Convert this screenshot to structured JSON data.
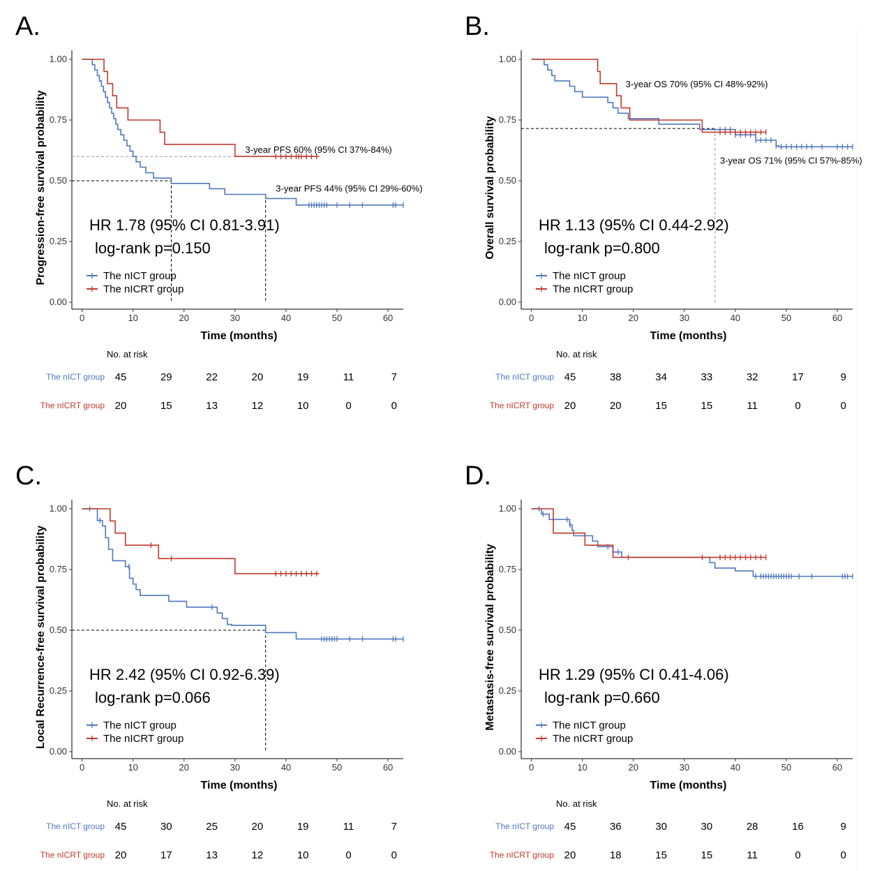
{
  "colors": {
    "nict": "#4F77BE",
    "nicrt": "#C0392B",
    "ref_dark": "#000000",
    "ref_light": "#999999"
  },
  "chart_data": [
    {
      "type": "line",
      "panel_label": "A.",
      "ylabel": "Progression-free survival probability",
      "xlabel": "Time (months)",
      "xlim": [
        -2,
        63
      ],
      "ylim": [
        0,
        1
      ],
      "xticks": [
        0,
        10,
        20,
        30,
        40,
        50,
        60
      ],
      "yticks": [
        0,
        0.25,
        0.5,
        0.75,
        1.0
      ],
      "ytick_labels": [
        "0.00",
        "0.25",
        "0.50",
        "0.75",
        "1.00"
      ],
      "series": [
        {
          "name": "The nICT group",
          "color_key": "nict",
          "steps": [
            [
              0,
              1.0
            ],
            [
              2,
              0.978
            ],
            [
              2.5,
              0.956
            ],
            [
              3,
              0.933
            ],
            [
              3.4,
              0.911
            ],
            [
              3.8,
              0.889
            ],
            [
              4.2,
              0.867
            ],
            [
              4.6,
              0.844
            ],
            [
              5,
              0.822
            ],
            [
              5.4,
              0.8
            ],
            [
              5.8,
              0.778
            ],
            [
              6.2,
              0.756
            ],
            [
              6.6,
              0.733
            ],
            [
              7,
              0.711
            ],
            [
              7.6,
              0.689
            ],
            [
              8.2,
              0.667
            ],
            [
              8.8,
              0.644
            ],
            [
              9.4,
              0.622
            ],
            [
              10,
              0.6
            ],
            [
              10.6,
              0.578
            ],
            [
              11.4,
              0.556
            ],
            [
              12.5,
              0.533
            ],
            [
              14,
              0.511
            ],
            [
              17.5,
              0.489
            ],
            [
              25,
              0.467
            ],
            [
              28,
              0.444
            ],
            [
              36,
              0.427
            ],
            [
              42,
              0.4
            ]
          ],
          "end": 63,
          "censors": [
            44.5,
            45,
            45.5,
            46,
            46.5,
            47,
            47.5,
            48,
            50,
            52.5,
            55,
            61,
            61.5,
            63
          ]
        },
        {
          "name": "The nICRT group",
          "color_key": "nicrt",
          "steps": [
            [
              0,
              1.0
            ],
            [
              4.3,
              0.95
            ],
            [
              5,
              0.9
            ],
            [
              6,
              0.85
            ],
            [
              6.8,
              0.8
            ],
            [
              9,
              0.75
            ],
            [
              15.3,
              0.7
            ],
            [
              16.2,
              0.65
            ],
            [
              30,
              0.6
            ]
          ],
          "end": 46.5,
          "censors": [
            38,
            39,
            40,
            41,
            42,
            42.5,
            43,
            44,
            45,
            46
          ]
        }
      ],
      "reference_lines": [
        {
          "y": 0.6,
          "x": 36,
          "style": "light",
          "vline": false
        },
        {
          "y": 0.5,
          "x": 17.5,
          "style": "dark",
          "vline": true
        },
        {
          "y": 0.44,
          "x": 36,
          "style": "dark",
          "vline": true,
          "hline": false
        }
      ],
      "annotations": [
        {
          "text": "3-year PFS 60% (95% CI 37%-84%)",
          "x": 32,
          "y": 0.615
        },
        {
          "text": "3-year PFS 44% (95% CI 29%-60%)",
          "x": 38,
          "y": 0.455
        }
      ],
      "hr_text": "HR 1.78 (95% CI 0.81-3.91)",
      "pval_text": "log-rank p=0.150",
      "legend": [
        "The nICT group",
        "The nICRT group"
      ],
      "risk_table": {
        "title": "No. at risk",
        "rows": [
          {
            "label": "The nICT group",
            "color_key": "nict",
            "values": [
              45,
              29,
              22,
              20,
              19,
              11,
              7
            ]
          },
          {
            "label": "The nICRT group",
            "color_key": "nicrt",
            "values": [
              20,
              15,
              13,
              12,
              10,
              0,
              0
            ]
          }
        ]
      }
    },
    {
      "type": "line",
      "panel_label": "B.",
      "ylabel": "Overall survival probability",
      "xlabel": "Time (months)",
      "xlim": [
        -2,
        63
      ],
      "ylim": [
        0,
        1
      ],
      "xticks": [
        0,
        10,
        20,
        30,
        40,
        50,
        60
      ],
      "yticks": [
        0,
        0.25,
        0.5,
        0.75,
        1.0
      ],
      "ytick_labels": [
        "0.00",
        "0.25",
        "0.50",
        "0.75",
        "1.00"
      ],
      "series": [
        {
          "name": "The nICT group",
          "color_key": "nict",
          "steps": [
            [
              0,
              1.0
            ],
            [
              2.5,
              0.978
            ],
            [
              3.2,
              0.956
            ],
            [
              4,
              0.933
            ],
            [
              4.6,
              0.911
            ],
            [
              7.5,
              0.889
            ],
            [
              8.5,
              0.867
            ],
            [
              10,
              0.844
            ],
            [
              15,
              0.822
            ],
            [
              16,
              0.8
            ],
            [
              17,
              0.778
            ],
            [
              19,
              0.756
            ],
            [
              25,
              0.733
            ],
            [
              33,
              0.711
            ],
            [
              40,
              0.689
            ],
            [
              44,
              0.667
            ],
            [
              48,
              0.644
            ],
            [
              48.5,
              0.64
            ]
          ],
          "end": 63,
          "censors": [
            37,
            38,
            39,
            40,
            41,
            42,
            43,
            44,
            45,
            46,
            47,
            48,
            49,
            50,
            51,
            52,
            53,
            54,
            55,
            57,
            60,
            61,
            62,
            63
          ]
        },
        {
          "name": "The nICRT group",
          "color_key": "nicrt",
          "steps": [
            [
              0,
              1.0
            ],
            [
              13,
              0.95
            ],
            [
              13.5,
              0.9
            ],
            [
              16.7,
              0.85
            ],
            [
              17.6,
              0.8
            ],
            [
              19.3,
              0.75
            ],
            [
              33.5,
              0.7
            ]
          ],
          "end": 46,
          "censors": [
            37,
            38,
            39,
            40,
            41,
            42,
            43,
            44,
            45,
            46
          ]
        }
      ],
      "reference_lines": [
        {
          "y": 0.715,
          "x": 36,
          "style": "dark",
          "vline": false
        },
        {
          "y": 0.715,
          "x": 36,
          "style": "light",
          "vline": true,
          "hline": false
        }
      ],
      "annotations": [
        {
          "text": "3-year OS 70% (95% CI 48%-92%)",
          "x": 18.5,
          "y": 0.885
        },
        {
          "text": "3-year OS 71% (95% CI 57%-85%)",
          "x": 37,
          "y": 0.57
        }
      ],
      "hr_text": "HR 1.13 (95% CI 0.44-2.92)",
      "pval_text": "log-rank p=0.800",
      "legend": [
        "The nICT group",
        "The nICRT group"
      ],
      "risk_table": {
        "title": "No. at risk",
        "rows": [
          {
            "label": "The nICT group",
            "color_key": "nict",
            "values": [
              45,
              38,
              34,
              33,
              32,
              17,
              9
            ]
          },
          {
            "label": "The nICRT group",
            "color_key": "nicrt",
            "values": [
              20,
              20,
              15,
              15,
              11,
              0,
              0
            ]
          }
        ]
      }
    },
    {
      "type": "line",
      "panel_label": "C.",
      "ylabel": "Local Recurrence-free survival probability",
      "xlabel": "Time (months)",
      "xlim": [
        -2,
        63
      ],
      "ylim": [
        0,
        1
      ],
      "xticks": [
        0,
        10,
        20,
        30,
        40,
        50,
        60
      ],
      "yticks": [
        0,
        0.25,
        0.5,
        0.75,
        1.0
      ],
      "ytick_labels": [
        "0.00",
        "0.25",
        "0.50",
        "0.75",
        "1.00"
      ],
      "series": [
        {
          "name": "The nICT group",
          "color_key": "nict",
          "steps": [
            [
              0,
              1.0
            ],
            [
              3,
              0.952
            ],
            [
              4,
              0.929
            ],
            [
              4.6,
              0.881
            ],
            [
              5.2,
              0.833
            ],
            [
              6,
              0.786
            ],
            [
              8.5,
              0.762
            ],
            [
              9.3,
              0.714
            ],
            [
              10,
              0.69
            ],
            [
              10.6,
              0.667
            ],
            [
              11.4,
              0.643
            ],
            [
              17,
              0.619
            ],
            [
              20.5,
              0.595
            ],
            [
              26.5,
              0.571
            ],
            [
              27.5,
              0.548
            ],
            [
              28.5,
              0.524
            ],
            [
              29.3,
              0.52
            ],
            [
              36,
              0.49
            ],
            [
              42,
              0.464
            ]
          ],
          "end": 63,
          "censors": [
            1.5,
            3.5,
            9.2,
            25.5,
            47,
            47.5,
            48,
            48.5,
            49,
            49.5,
            50,
            52.5,
            55,
            61,
            61.5,
            63
          ]
        },
        {
          "name": "The nICRT group",
          "color_key": "nicrt",
          "steps": [
            [
              0,
              1.0
            ],
            [
              5.5,
              0.95
            ],
            [
              6.5,
              0.9
            ],
            [
              8.5,
              0.85
            ],
            [
              15,
              0.795
            ],
            [
              30,
              0.733
            ]
          ],
          "end": 46.5,
          "censors": [
            13.5,
            17.5,
            38,
            39,
            40,
            41,
            42,
            43,
            44,
            45,
            46
          ]
        }
      ],
      "reference_lines": [
        {
          "y": 0.5,
          "x": 36,
          "style": "dark",
          "vline": true
        }
      ],
      "annotations": [],
      "hr_text": "HR 2.42 (95% CI 0.92-6.39)",
      "pval_text": "log-rank p=0.066",
      "legend": [
        "The nICT group",
        "The nICRT group"
      ],
      "risk_table": {
        "title": "No. at risk",
        "rows": [
          {
            "label": "The nICT group",
            "color_key": "nict",
            "values": [
              45,
              30,
              25,
              20,
              19,
              11,
              7
            ]
          },
          {
            "label": "The nICRT group",
            "color_key": "nicrt",
            "values": [
              20,
              17,
              13,
              12,
              10,
              0,
              0
            ]
          }
        ]
      }
    },
    {
      "type": "line",
      "panel_label": "D.",
      "ylabel": "Metastasis-free survival probability",
      "xlabel": "Time (months)",
      "xlim": [
        -2,
        63
      ],
      "ylim": [
        0,
        1
      ],
      "xticks": [
        0,
        10,
        20,
        30,
        40,
        50,
        60
      ],
      "yticks": [
        0,
        0.25,
        0.5,
        0.75,
        1.0
      ],
      "ytick_labels": [
        "0.00",
        "0.25",
        "0.50",
        "0.75",
        "1.00"
      ],
      "series": [
        {
          "name": "The nICT group",
          "color_key": "nict",
          "steps": [
            [
              0,
              1.0
            ],
            [
              2,
              0.978
            ],
            [
              3.5,
              0.956
            ],
            [
              7.5,
              0.933
            ],
            [
              8,
              0.911
            ],
            [
              8.3,
              0.889
            ],
            [
              12,
              0.867
            ],
            [
              13,
              0.844
            ],
            [
              16,
              0.822
            ],
            [
              17.7,
              0.8
            ],
            [
              35,
              0.778
            ],
            [
              36,
              0.756
            ],
            [
              40,
              0.744
            ],
            [
              43.5,
              0.722
            ]
          ],
          "end": 63,
          "censors": [
            1.5,
            2.3,
            7,
            7.6,
            15,
            17,
            44,
            45,
            45.5,
            46,
            46.5,
            47,
            47.5,
            48,
            48.5,
            49,
            49.5,
            50,
            50.5,
            51,
            52.5,
            55,
            61,
            61.5,
            62,
            63
          ]
        },
        {
          "name": "The nICRT group",
          "color_key": "nicrt",
          "steps": [
            [
              0,
              1.0
            ],
            [
              4.3,
              0.9
            ],
            [
              10.5,
              0.85
            ],
            [
              16,
              0.8
            ]
          ],
          "end": 46,
          "censors": [
            19,
            33.5,
            37,
            38,
            39,
            40,
            41,
            42,
            43,
            44,
            45,
            46
          ]
        }
      ],
      "reference_lines": [],
      "annotations": [],
      "hr_text": "HR 1.29 (95% CI 0.41-4.06)",
      "pval_text": "log-rank p=0.660",
      "legend": [
        "The nICT group",
        "The nICRT group"
      ],
      "risk_table": {
        "title": "No. at risk",
        "rows": [
          {
            "label": "The nICT group",
            "color_key": "nict",
            "values": [
              45,
              36,
              30,
              30,
              28,
              16,
              9
            ]
          },
          {
            "label": "The nICRT group",
            "color_key": "nicrt",
            "values": [
              20,
              18,
              15,
              15,
              11,
              0,
              0
            ]
          }
        ]
      }
    }
  ]
}
